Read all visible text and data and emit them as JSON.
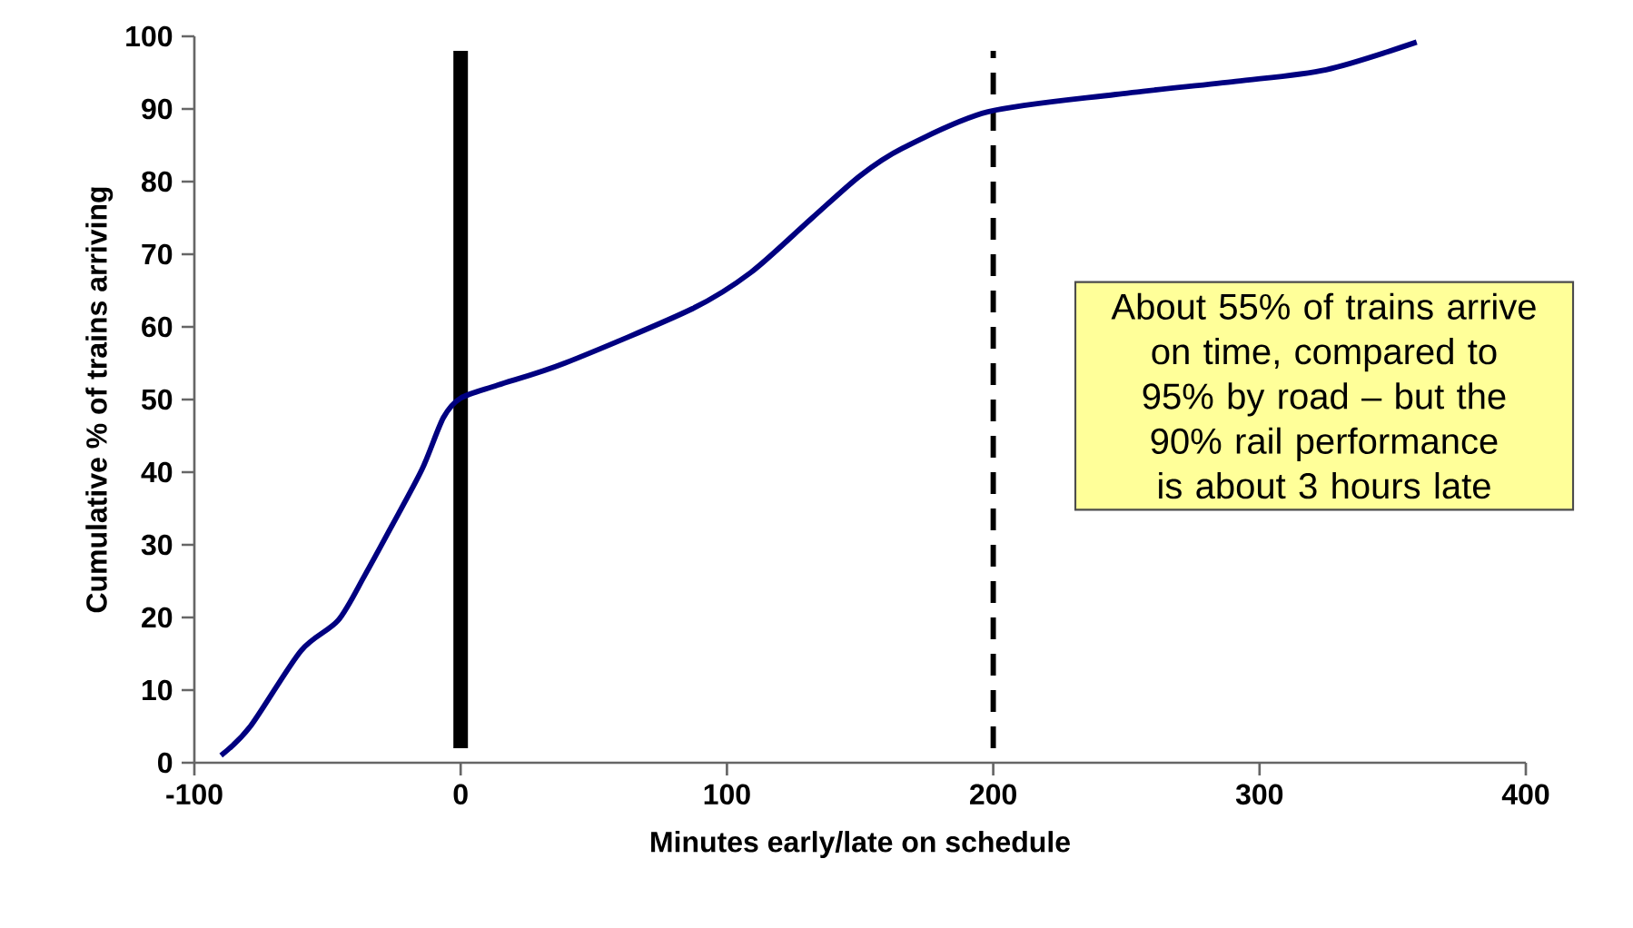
{
  "chart_data": {
    "type": "line",
    "xlabel": "Minutes early/late on schedule",
    "ylabel": "Cumulative % of trains arriving",
    "x": [
      -90,
      -79,
      -60,
      -46,
      -36,
      -26,
      -14.5,
      -6.5,
      0,
      14,
      39,
      87,
      109,
      132,
      150,
      166,
      198,
      246,
      291,
      325,
      359
    ],
    "series": [
      {
        "color": "#000080",
        "values": [
          1,
          5,
          15.4,
          19.6,
          25.8,
          32.5,
          40.4,
          47.5,
          50.2,
          52,
          55,
          62.5,
          67.5,
          75,
          80.8,
          84.6,
          89.6,
          92,
          93.8,
          95.4,
          99.2
        ]
      }
    ],
    "xlim": [
      -100,
      400
    ],
    "ylim": [
      0,
      100
    ],
    "xticks": [
      -100,
      0,
      100,
      200,
      300,
      400
    ],
    "yticks": [
      0,
      10,
      20,
      30,
      40,
      50,
      60,
      70,
      80,
      90,
      100
    ],
    "grid": false,
    "marker": "none",
    "line_style": "solid",
    "ref_lines": [
      {
        "axis": "x",
        "value": 0,
        "color": "#000000",
        "line_style": "solid"
      },
      {
        "axis": "x",
        "value": 200,
        "color": "#000000",
        "line_style": "dashed"
      }
    ],
    "annotations": [
      "About 55% of trains arrive on time, compared to 95% by road – but the 90% rail performance is about 3 hours late"
    ]
  }
}
